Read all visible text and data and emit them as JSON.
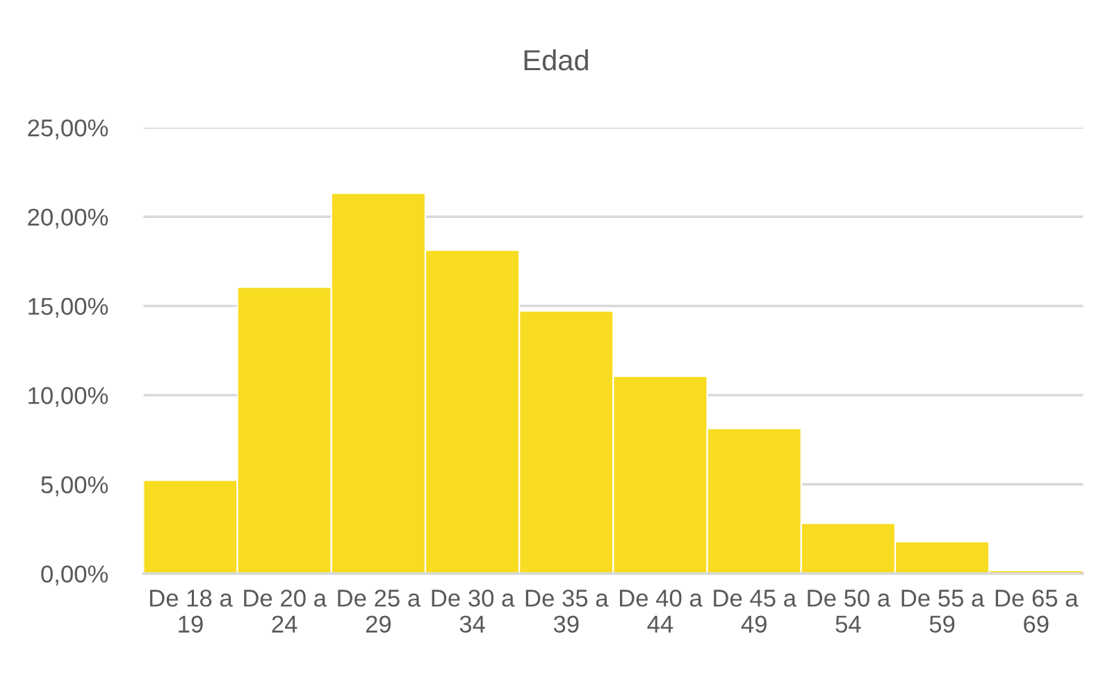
{
  "chart_data": {
    "type": "bar",
    "title": "Edad",
    "categories": [
      "De 18 a 19",
      "De 20 a 24",
      "De 25 a 29",
      "De 30 a 34",
      "De 35 a 39",
      "De 40 a 44",
      "De 45 a 49",
      "De 50 a 54",
      "De 55 a 59",
      "De 65 a 69"
    ],
    "values": [
      5.23,
      16.06,
      21.32,
      18.13,
      14.72,
      11.06,
      8.13,
      2.82,
      1.79,
      0.18
    ],
    "color": "#f7dc21",
    "ylim": [
      0,
      25
    ],
    "yticks": [
      {
        "value": 0,
        "label": "0,00%"
      },
      {
        "value": 5,
        "label": "5,00%"
      },
      {
        "value": 10,
        "label": "10,00%"
      },
      {
        "value": 15,
        "label": "15,00%"
      },
      {
        "value": 20,
        "label": "20,00%"
      },
      {
        "value": 25,
        "label": "25,00%"
      }
    ],
    "grid": "y",
    "legend": false
  }
}
